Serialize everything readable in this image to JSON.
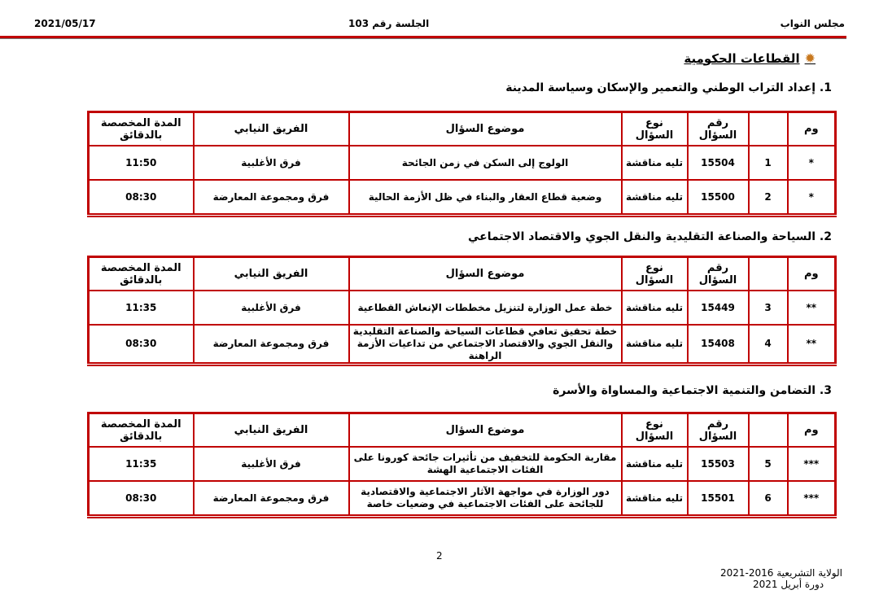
{
  "header": {
    "institution": "مجلس النواب",
    "session": "الجلسة رقم 103",
    "date": "2021/05/17"
  },
  "title": "القطاعات الحكومية",
  "columns": {
    "mark": "وم",
    "order": "",
    "number": "رقم السؤال",
    "type": "نوع السؤال",
    "subject": "موضوع السؤال",
    "team": "الفريق النيابي",
    "duration": "المدة المخصصة بالدقائق"
  },
  "sections": [
    {
      "heading": "1.  إعداد التراب الوطني والتعمير والإسكان وسياسة المدينة",
      "rows": [
        {
          "mark": "*",
          "order": "1",
          "number": "15504",
          "type": "تليه مناقشة",
          "subject": "الولوج إلى السكن في زمن الجائحة",
          "team": "فرق الأغلبية",
          "duration": "11:50"
        },
        {
          "mark": "*",
          "order": "2",
          "number": "15500",
          "type": "تليه مناقشة",
          "subject": "وضعية قطاع العقار والبناء في ظل الأزمة الحالية",
          "team": "فرق ومجموعة المعارضة",
          "duration": "08:30"
        }
      ]
    },
    {
      "heading": "2.  السياحة والصناعة التقليدية والنقل الجوي والاقتصاد الاجتماعي",
      "rows": [
        {
          "mark": "**",
          "order": "3",
          "number": "15449",
          "type": "تليه مناقشة",
          "subject": "خطة عمل الوزارة لتنزيل مخططات الإنعاش القطاعية",
          "team": "فرق الأغلبية",
          "duration": "11:35"
        },
        {
          "mark": "**",
          "order": "4",
          "number": "15408",
          "type": "تليه مناقشة",
          "subject": "خطة تحقيق تعافي قطاعات السياحة والصناعة التقليدية والنقل الجوي والاقتصاد الاجتماعي من تداعيات الأزمة الراهنة",
          "team": "فرق ومجموعة المعارضة",
          "duration": "08:30"
        }
      ]
    },
    {
      "heading": "3.  التضامن والتنمية الاجتماعية والمساواة والأسرة",
      "rows": [
        {
          "mark": "***",
          "order": "5",
          "number": "15503",
          "type": "تليه مناقشة",
          "subject": "مقاربة الحكومة للتخفيف من تأثيرات جائحة كورونا على الفئات الاجتماعية الهشة",
          "team": "فرق الأغلبية",
          "duration": "11:35"
        },
        {
          "mark": "***",
          "order": "6",
          "number": "15501",
          "type": "تليه مناقشة",
          "subject": "دور الوزارة في مواجهة الآثار الاجتماعية والاقتصادية للجائحة على الفئات الاجتماعية في وضعيات خاصة",
          "team": "فرق ومجموعة المعارضة",
          "duration": "08:30"
        }
      ]
    }
  ],
  "footer": {
    "page_number": "2",
    "term": "الولاية التشريعية 2016-2021",
    "session": "دورة أبريل 2021"
  },
  "colors": {
    "accent": "#c00000"
  }
}
